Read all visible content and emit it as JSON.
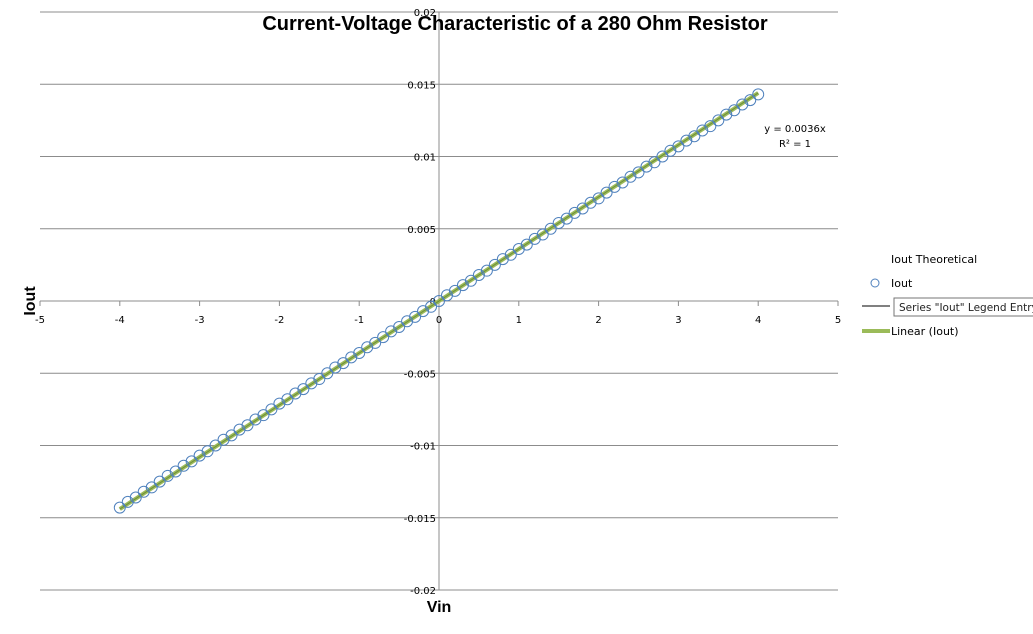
{
  "chart_data": {
    "type": "scatter",
    "title": "Current-Voltage Characteristic of a 280 Ohm Resistor",
    "xlabel": "Vin",
    "ylabel": "Iout",
    "xlim": [
      -5,
      5
    ],
    "ylim": [
      -0.02,
      0.02
    ],
    "x_ticks": [
      -5,
      -4,
      -3,
      -2,
      -1,
      0,
      1,
      2,
      3,
      4,
      5
    ],
    "y_ticks": [
      -0.02,
      -0.015,
      -0.01,
      -0.005,
      0,
      0.005,
      0.01,
      0.015,
      0.02
    ],
    "grid": "horizontal",
    "legend_position": "right",
    "series": [
      {
        "name": "Iout Theoretical",
        "marker": "line",
        "color": "#000000",
        "x": [],
        "values": []
      },
      {
        "name": "Iout",
        "marker": "open-circle",
        "color": "#4f81bd",
        "x": [
          -4.0,
          -3.9,
          -3.8,
          -3.7,
          -3.6,
          -3.5,
          -3.4,
          -3.3,
          -3.2,
          -3.1,
          -3.0,
          -2.9,
          -2.8,
          -2.7,
          -2.6,
          -2.5,
          -2.4,
          -2.3,
          -2.2,
          -2.1,
          -2.0,
          -1.9,
          -1.8,
          -1.7,
          -1.6,
          -1.5,
          -1.4,
          -1.3,
          -1.2,
          -1.1,
          -1.0,
          -0.9,
          -0.8,
          -0.7,
          -0.6,
          -0.5,
          -0.4,
          -0.3,
          -0.2,
          -0.1,
          0.0,
          0.1,
          0.2,
          0.3,
          0.4,
          0.5,
          0.6,
          0.7,
          0.8,
          0.9,
          1.0,
          1.1,
          1.2,
          1.3,
          1.4,
          1.5,
          1.6,
          1.7,
          1.8,
          1.9,
          2.0,
          2.1,
          2.2,
          2.3,
          2.4,
          2.5,
          2.6,
          2.7,
          2.8,
          2.9,
          3.0,
          3.1,
          3.2,
          3.3,
          3.4,
          3.5,
          3.6,
          3.7,
          3.8,
          3.9,
          4.0
        ],
        "values": [
          -0.0143,
          -0.0139,
          -0.0136,
          -0.0132,
          -0.0129,
          -0.0125,
          -0.0121,
          -0.0118,
          -0.0114,
          -0.0111,
          -0.0107,
          -0.0104,
          -0.01,
          -0.0096,
          -0.0093,
          -0.0089,
          -0.0086,
          -0.0082,
          -0.0079,
          -0.0075,
          -0.0071,
          -0.0068,
          -0.0064,
          -0.0061,
          -0.0057,
          -0.0054,
          -0.005,
          -0.0046,
          -0.0043,
          -0.0039,
          -0.0036,
          -0.0032,
          -0.0029,
          -0.0025,
          -0.0021,
          -0.0018,
          -0.0014,
          -0.0011,
          -0.0007,
          -0.0004,
          0.0,
          0.0004,
          0.0007,
          0.0011,
          0.0014,
          0.0018,
          0.0021,
          0.0025,
          0.0029,
          0.0032,
          0.0036,
          0.0039,
          0.0043,
          0.0046,
          0.005,
          0.0054,
          0.0057,
          0.0061,
          0.0064,
          0.0068,
          0.0071,
          0.0075,
          0.0079,
          0.0082,
          0.0086,
          0.0089,
          0.0093,
          0.0096,
          0.01,
          0.0104,
          0.0107,
          0.0111,
          0.0114,
          0.0118,
          0.0121,
          0.0125,
          0.0129,
          0.0132,
          0.0136,
          0.0139,
          0.0143
        ]
      },
      {
        "name": "Linear (Iout)",
        "marker": "trendline",
        "color": "#9bbb59",
        "x": [
          -4.0,
          4.0
        ],
        "values": [
          -0.0144,
          0.0144
        ]
      }
    ],
    "trendline_label": {
      "equation": "y = 0.0036x",
      "r_squared": "R² = 1"
    }
  },
  "tooltip": {
    "text": "Series \"Iout\" Legend Entry"
  }
}
